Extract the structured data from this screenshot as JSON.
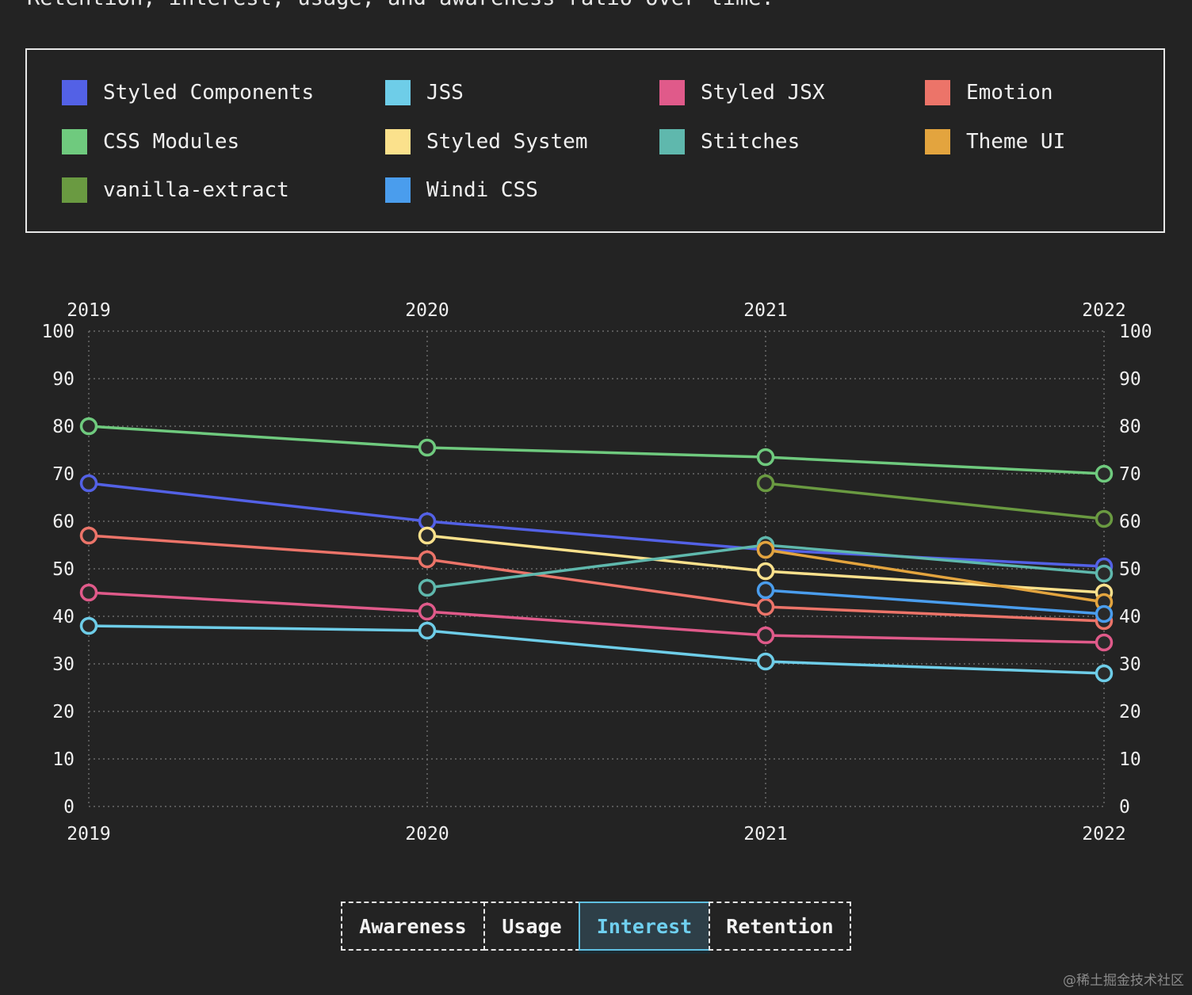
{
  "page": {
    "subtitle": "Retention, interest, usage, and awareness ratio over time."
  },
  "legend": [
    {
      "label": "Styled Components",
      "color": "#5361e6"
    },
    {
      "label": "JSS",
      "color": "#6ecde8"
    },
    {
      "label": "Styled JSX",
      "color": "#e05a8a"
    },
    {
      "label": "Emotion",
      "color": "#ec7469"
    },
    {
      "label": "CSS Modules",
      "color": "#6fca7e"
    },
    {
      "label": "Styled System",
      "color": "#fbe18c"
    },
    {
      "label": "Stitches",
      "color": "#5fb8ad"
    },
    {
      "label": "Theme UI",
      "color": "#e3a43e"
    },
    {
      "label": "vanilla-extract",
      "color": "#6a9a41"
    },
    {
      "label": "Windi CSS",
      "color": "#4a9ded"
    }
  ],
  "tabs": [
    {
      "label": "Awareness",
      "active": false
    },
    {
      "label": "Usage",
      "active": false
    },
    {
      "label": "Interest",
      "active": true
    },
    {
      "label": "Retention",
      "active": false
    }
  ],
  "watermark": "@稀土掘金技术社区",
  "chart_data": {
    "type": "line",
    "x": [
      "2019",
      "2020",
      "2021",
      "2022"
    ],
    "ylim": [
      0,
      100
    ],
    "yticks": [
      0,
      10,
      20,
      30,
      40,
      50,
      60,
      70,
      80,
      90,
      100
    ],
    "grid": true,
    "series": [
      {
        "name": "CSS Modules",
        "color": "#6fca7e",
        "values": [
          80,
          75.5,
          73.5,
          70
        ]
      },
      {
        "name": "Styled Components",
        "color": "#5361e6",
        "values": [
          68,
          60,
          54,
          50.5
        ]
      },
      {
        "name": "Emotion",
        "color": "#ec7469",
        "values": [
          57,
          52,
          42,
          39
        ]
      },
      {
        "name": "Styled JSX",
        "color": "#e05a8a",
        "values": [
          45,
          41,
          36,
          34.5
        ]
      },
      {
        "name": "JSS",
        "color": "#6ecde8",
        "values": [
          38,
          37,
          30.5,
          28
        ]
      },
      {
        "name": "Styled System",
        "color": "#fbe18c",
        "values": [
          null,
          57,
          49.5,
          45
        ]
      },
      {
        "name": "Stitches",
        "color": "#5fb8ad",
        "values": [
          null,
          46,
          55,
          49
        ]
      },
      {
        "name": "Theme UI",
        "color": "#e3a43e",
        "values": [
          null,
          null,
          54,
          43
        ]
      },
      {
        "name": "vanilla-extract",
        "color": "#6a9a41",
        "values": [
          null,
          null,
          68,
          60.5
        ]
      },
      {
        "name": "Windi CSS",
        "color": "#4a9ded",
        "values": [
          null,
          null,
          45.5,
          40.5
        ]
      }
    ]
  }
}
